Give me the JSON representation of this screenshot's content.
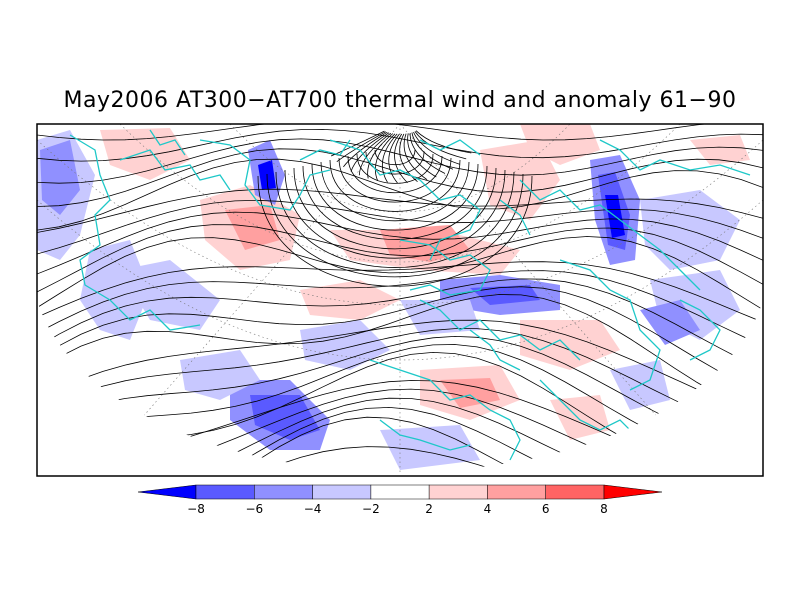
{
  "title": "May2006 AT300−AT700 thermal wind and anomaly 61−90",
  "colorbar": {
    "labels": [
      "−8",
      "−6",
      "−4",
      "−2",
      "2",
      "4",
      "6",
      "8"
    ],
    "fills": [
      "#0000ff",
      "#5a5aff",
      "#9090ff",
      "#c8c8ff",
      "#ffffff",
      "#ffd2d2",
      "#ffa0a0",
      "#ff6464",
      "#ff0000"
    ]
  },
  "colors": {
    "coastline": "#1ec8c8",
    "streamline": "#000000",
    "frame": "#000000"
  }
}
